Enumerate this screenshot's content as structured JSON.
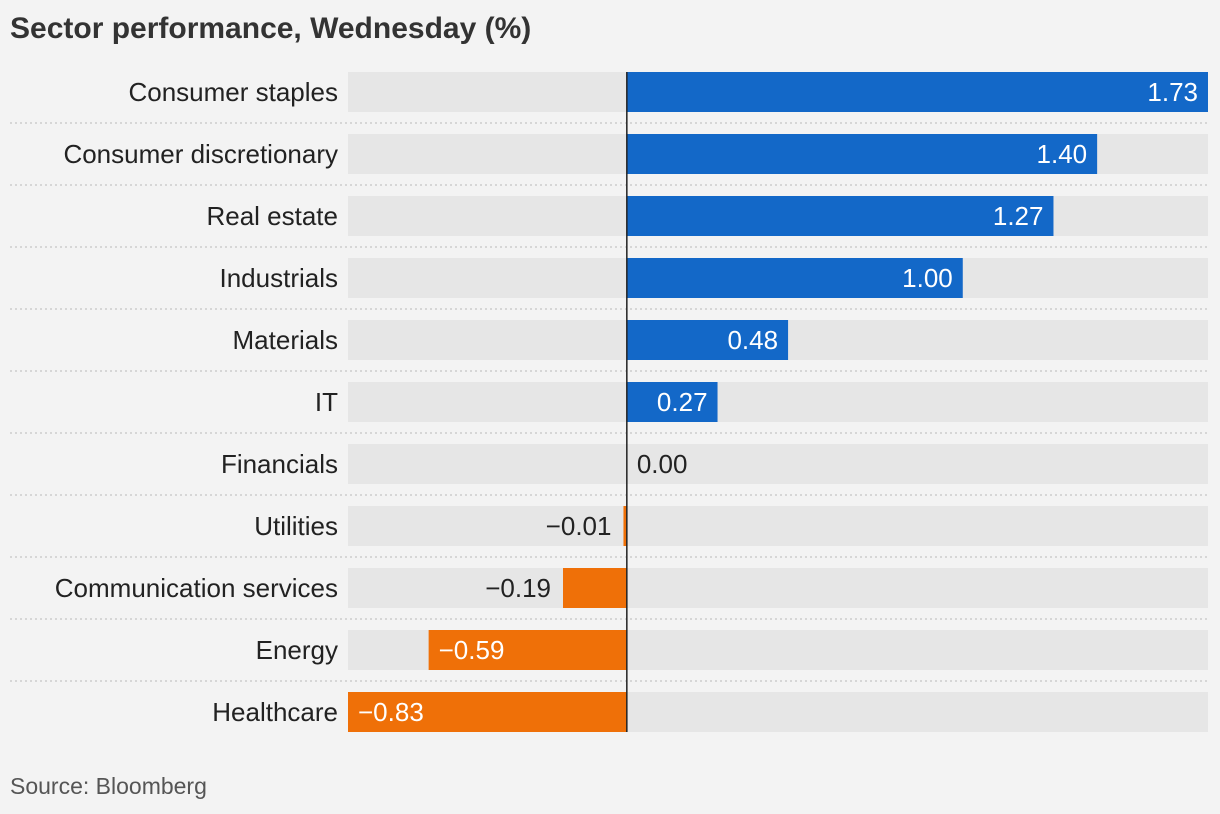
{
  "title": "Sector performance, Wednesday (%)",
  "source": "Source: Bloomberg",
  "colors": {
    "positive": "#1368c8",
    "negative": "#ef7008",
    "track": "#e6e6e6",
    "label": "#222222",
    "background": "#f3f3f3"
  },
  "chart_data": {
    "type": "bar",
    "orientation": "horizontal",
    "title": "Sector performance, Wednesday (%)",
    "xlim": [
      -0.83,
      1.73
    ],
    "grid": false,
    "legend": "none",
    "categories": [
      "Consumer staples",
      "Consumer discretionary",
      "Real estate",
      "Industrials",
      "Materials",
      "IT",
      "Financials",
      "Utilities",
      "Communication services",
      "Energy",
      "Healthcare"
    ],
    "values": [
      1.73,
      1.4,
      1.27,
      1.0,
      0.48,
      0.27,
      0.0,
      -0.01,
      -0.19,
      -0.59,
      -0.83
    ],
    "labels": [
      "1.73",
      "1.40",
      "1.27",
      "1.00",
      "0.48",
      "0.27",
      "0.00",
      "−0.01",
      "−0.19",
      "−0.59",
      "−0.83"
    ]
  }
}
